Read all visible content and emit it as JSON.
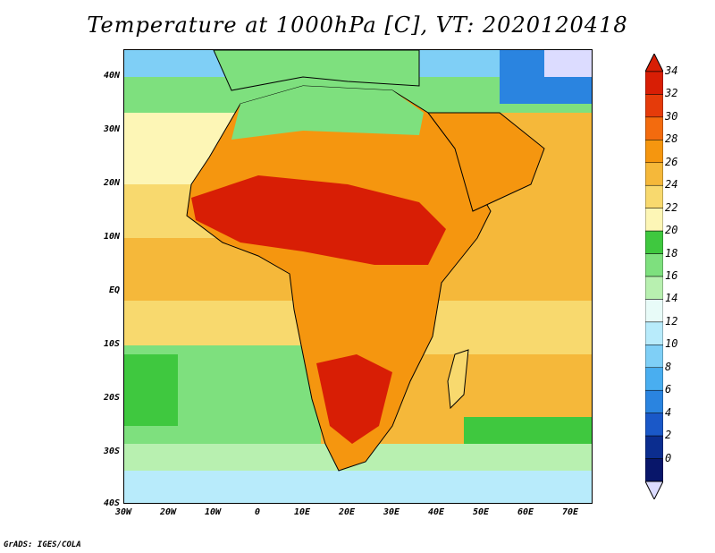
{
  "title": "Temperature at 1000hPa [C], VT: 2020120418",
  "footer": "GrADS: IGES/COLA",
  "axes": {
    "lat_labels": [
      "40N",
      "30N",
      "20N",
      "10N",
      "EQ",
      "10S",
      "20S",
      "30S",
      "40S"
    ],
    "lat_values": [
      40,
      30,
      20,
      10,
      0,
      -10,
      -20,
      -30,
      -40
    ],
    "lon_labels": [
      "30W",
      "20W",
      "10W",
      "0",
      "10E",
      "20E",
      "30E",
      "40E",
      "50E",
      "60E",
      "70E"
    ],
    "lon_values": [
      -30,
      -20,
      -10,
      0,
      10,
      20,
      30,
      40,
      50,
      60,
      70
    ],
    "lon_range": [
      -30,
      75
    ],
    "lat_range": [
      -40,
      45
    ]
  },
  "colorbar": {
    "labels": [
      "34",
      "32",
      "30",
      "28",
      "26",
      "24",
      "22",
      "20",
      "18",
      "16",
      "14",
      "12",
      "10",
      "8",
      "6",
      "4",
      "2",
      "0"
    ],
    "colors": [
      "#d81e05",
      "#e53b0a",
      "#f36b0e",
      "#f5960f",
      "#f5b83a",
      "#f8d96e",
      "#fdf6b6",
      "#3fc83f",
      "#7ee07e",
      "#b8f0b0",
      "#e8fbf8",
      "#b8ebfb",
      "#7fcff6",
      "#49aef0",
      "#2a84e0",
      "#1a58c8",
      "#0b2d8f",
      "#08166a",
      "#dcdcff"
    ]
  },
  "map": {
    "ocean_north_color": "#7fcff6",
    "ocean_tropics_color": "#f5b83a",
    "ocean_south_color": "#7ee07e",
    "land_hot_color": "#d81e05",
    "land_warm_color": "#f5960f",
    "coast_color": "#000000"
  }
}
